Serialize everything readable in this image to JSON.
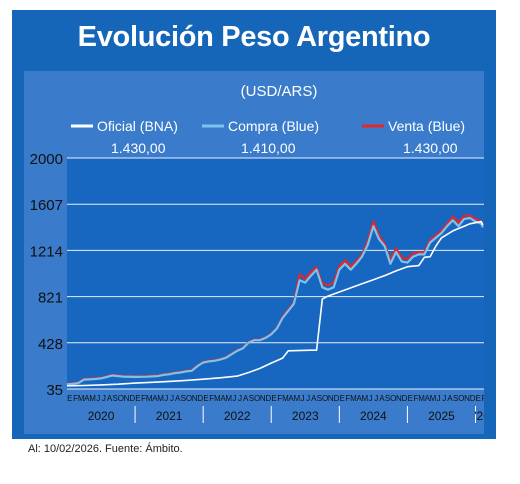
{
  "title": "Evolución Peso Argentino",
  "footer": "Al: 10/02/2026. Fuente: Ámbito.",
  "colors": {
    "frame": "#1565b8",
    "panel": "#3a7ccb",
    "plot": "#1766c0",
    "oficial": "#ffffff",
    "compra": "#7cc3ec",
    "venta": "#e1262c"
  },
  "chart_data": {
    "type": "line",
    "subtitle": "(USD/ARS)",
    "yticks": [
      "2000",
      "1607",
      "1214",
      "821",
      "428",
      "35"
    ],
    "ylim": [
      35,
      2000
    ],
    "legend": [
      {
        "key": "oficial",
        "label": "Oficial (BNA)",
        "value": "1.430,00"
      },
      {
        "key": "compra",
        "label": "Compra (Blue)",
        "value": "1.410,00"
      },
      {
        "key": "venta",
        "label": "Venta (Blue)",
        "value": "1.430,00"
      }
    ],
    "month_letters": [
      "E",
      "F",
      "M",
      "A",
      "M",
      "J",
      "J",
      "A",
      "S",
      "O",
      "N",
      "D"
    ],
    "years": [
      "2020",
      "2021",
      "2022",
      "2023",
      "2024",
      "2025",
      "'26"
    ],
    "series": [
      {
        "key": "oficial",
        "name": "Oficial (BNA)",
        "points": [
          [
            0,
            62
          ],
          [
            3,
            65
          ],
          [
            6,
            70
          ],
          [
            9,
            76
          ],
          [
            12,
            85
          ],
          [
            15,
            92
          ],
          [
            18,
            100
          ],
          [
            21,
            108
          ],
          [
            24,
            118
          ],
          [
            27,
            130
          ],
          [
            30,
            145
          ],
          [
            32,
            175
          ],
          [
            34,
            210
          ],
          [
            36,
            255
          ],
          [
            38,
            298
          ],
          [
            39,
            360
          ],
          [
            43,
            365
          ],
          [
            44,
            365
          ],
          [
            45,
            800
          ],
          [
            46,
            825
          ],
          [
            48,
            860
          ],
          [
            50,
            895
          ],
          [
            52,
            930
          ],
          [
            54,
            965
          ],
          [
            56,
            1000
          ],
          [
            58,
            1040
          ],
          [
            60,
            1075
          ],
          [
            62,
            1085
          ],
          [
            63,
            1155
          ],
          [
            64,
            1160
          ],
          [
            65,
            1250
          ],
          [
            66,
            1320
          ],
          [
            67,
            1350
          ],
          [
            68,
            1380
          ],
          [
            69,
            1400
          ],
          [
            70,
            1420
          ],
          [
            71,
            1440
          ],
          [
            72,
            1450
          ],
          [
            73,
            1460
          ],
          [
            73.3,
            1430
          ]
        ]
      },
      {
        "key": "compra",
        "name": "Compra (Blue)",
        "points": [
          [
            0,
            75
          ],
          [
            1,
            78
          ],
          [
            2,
            85
          ],
          [
            3,
            115
          ],
          [
            5,
            120
          ],
          [
            6,
            125
          ],
          [
            8,
            150
          ],
          [
            9,
            145
          ],
          [
            10,
            140
          ],
          [
            12,
            138
          ],
          [
            14,
            140
          ],
          [
            16,
            145
          ],
          [
            17,
            155
          ],
          [
            18,
            160
          ],
          [
            19,
            170
          ],
          [
            20,
            175
          ],
          [
            21,
            185
          ],
          [
            22,
            190
          ],
          [
            23,
            230
          ],
          [
            24,
            260
          ],
          [
            25,
            270
          ],
          [
            26,
            275
          ],
          [
            27,
            285
          ],
          [
            28,
            300
          ],
          [
            29,
            330
          ],
          [
            30,
            360
          ],
          [
            31,
            380
          ],
          [
            32,
            430
          ],
          [
            33,
            450
          ],
          [
            34,
            450
          ],
          [
            35,
            470
          ],
          [
            36,
            500
          ],
          [
            37,
            550
          ],
          [
            38,
            640
          ],
          [
            39,
            700
          ],
          [
            40,
            760
          ],
          [
            41,
            960
          ],
          [
            42,
            940
          ],
          [
            43,
            1000
          ],
          [
            44,
            1050
          ],
          [
            45,
            900
          ],
          [
            46,
            880
          ],
          [
            47,
            900
          ],
          [
            48,
            1050
          ],
          [
            49,
            1100
          ],
          [
            50,
            1050
          ],
          [
            51,
            1100
          ],
          [
            52,
            1160
          ],
          [
            53,
            1260
          ],
          [
            54,
            1420
          ],
          [
            55,
            1310
          ],
          [
            56,
            1250
          ],
          [
            57,
            1100
          ],
          [
            58,
            1200
          ],
          [
            59,
            1120
          ],
          [
            60,
            1110
          ],
          [
            61,
            1160
          ],
          [
            62,
            1180
          ],
          [
            63,
            1180
          ],
          [
            64,
            1280
          ],
          [
            65,
            1320
          ],
          [
            66,
            1360
          ],
          [
            67,
            1420
          ],
          [
            68,
            1470
          ],
          [
            69,
            1420
          ],
          [
            70,
            1480
          ],
          [
            71,
            1490
          ],
          [
            72,
            1460
          ],
          [
            73,
            1440
          ],
          [
            73.3,
            1410
          ]
        ]
      },
      {
        "key": "venta",
        "name": "Venta (Blue)",
        "points": [
          [
            0,
            80
          ],
          [
            1,
            83
          ],
          [
            2,
            90
          ],
          [
            3,
            120
          ],
          [
            5,
            125
          ],
          [
            6,
            130
          ],
          [
            8,
            155
          ],
          [
            9,
            150
          ],
          [
            10,
            145
          ],
          [
            12,
            143
          ],
          [
            14,
            145
          ],
          [
            16,
            150
          ],
          [
            17,
            160
          ],
          [
            18,
            165
          ],
          [
            19,
            175
          ],
          [
            20,
            180
          ],
          [
            21,
            190
          ],
          [
            22,
            195
          ],
          [
            23,
            235
          ],
          [
            24,
            265
          ],
          [
            25,
            275
          ],
          [
            26,
            280
          ],
          [
            27,
            290
          ],
          [
            28,
            305
          ],
          [
            29,
            335
          ],
          [
            30,
            365
          ],
          [
            31,
            385
          ],
          [
            32,
            435
          ],
          [
            33,
            455
          ],
          [
            34,
            455
          ],
          [
            35,
            475
          ],
          [
            36,
            505
          ],
          [
            37,
            555
          ],
          [
            38,
            650
          ],
          [
            39,
            710
          ],
          [
            40,
            770
          ],
          [
            41,
            1010
          ],
          [
            42,
            970
          ],
          [
            43,
            1030
          ],
          [
            44,
            1070
          ],
          [
            45,
            930
          ],
          [
            46,
            920
          ],
          [
            47,
            940
          ],
          [
            48,
            1080
          ],
          [
            49,
            1130
          ],
          [
            50,
            1080
          ],
          [
            51,
            1120
          ],
          [
            52,
            1180
          ],
          [
            53,
            1290
          ],
          [
            54,
            1460
          ],
          [
            55,
            1340
          ],
          [
            56,
            1270
          ],
          [
            57,
            1130
          ],
          [
            58,
            1230
          ],
          [
            59,
            1150
          ],
          [
            60,
            1140
          ],
          [
            61,
            1190
          ],
          [
            62,
            1200
          ],
          [
            63,
            1200
          ],
          [
            64,
            1300
          ],
          [
            65,
            1340
          ],
          [
            66,
            1380
          ],
          [
            67,
            1440
          ],
          [
            68,
            1500
          ],
          [
            69,
            1450
          ],
          [
            70,
            1510
          ],
          [
            71,
            1510
          ],
          [
            72,
            1480
          ],
          [
            73,
            1460
          ],
          [
            73.3,
            1430
          ]
        ]
      }
    ],
    "x_unit": "months since Jan 2020",
    "xlim": [
      0,
      73.5
    ]
  }
}
